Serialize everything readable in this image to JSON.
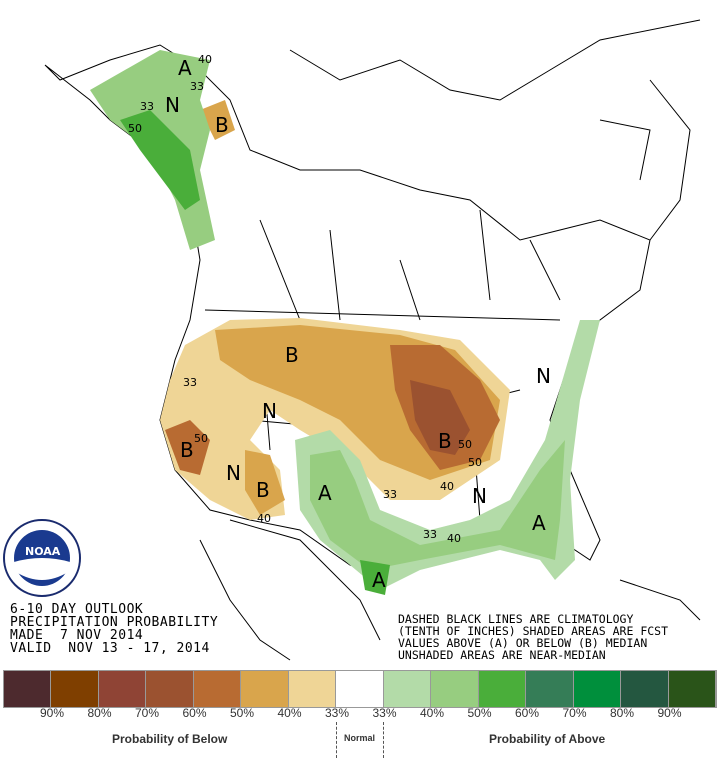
{
  "title_lines": [
    "6-10 DAY OUTLOOK",
    "PRECIPITATION PROBABILITY",
    "MADE  7 NOV 2014",
    "VALID  NOV 13 - 17, 2014"
  ],
  "notes_lines": [
    "DASHED BLACK LINES ARE CLIMATOLOGY",
    "(TENTH OF INCHES) SHADED AREAS ARE FCST",
    "VALUES ABOVE (A) OR BELOW (B) MEDIAN",
    "UNSHADED AREAS ARE NEAR-MEDIAN"
  ],
  "logo_text": "NOAA",
  "map_labels": {
    "A": "A",
    "B": "B",
    "N": "N",
    "c33": "33",
    "c40": "40",
    "c50": "50"
  },
  "legend": {
    "colors": [
      "#4d2a2e",
      "#7f3f00",
      "#8f4435",
      "#9b5230",
      "#b86b32",
      "#d9a54c",
      "#efd596",
      "#ffffff",
      "#b3dba8",
      "#97cd80",
      "#4aae3a",
      "#357d57",
      "#008f3c",
      "#245740",
      "#2a5419"
    ],
    "pct_labels": [
      "90%",
      "80%",
      "70%",
      "60%",
      "50%",
      "40%",
      "33%",
      "33%",
      "40%",
      "50%",
      "60%",
      "70%",
      "80%",
      "90%"
    ],
    "below_label": "Probability of Below",
    "normal_label": "Normal",
    "above_label": "Probability of Above"
  }
}
